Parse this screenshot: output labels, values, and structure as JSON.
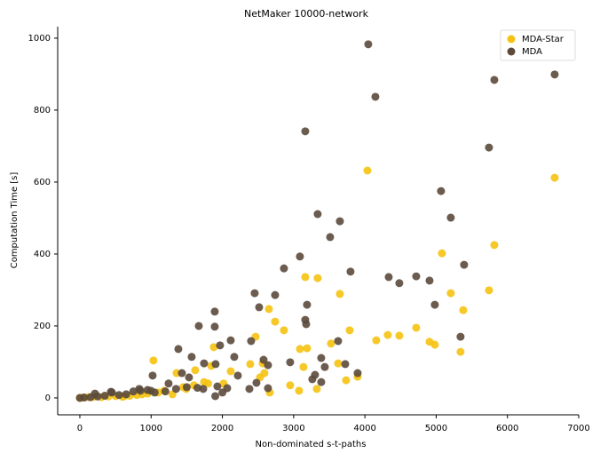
{
  "chart_data": {
    "type": "scatter",
    "title": "NetMaker 10000-network",
    "x_label": "Non-dominated s-t-paths",
    "y_label": "Computation Time [s]",
    "xlim": [
      -311,
      7000
    ],
    "ylim": [
      -47,
      1032
    ],
    "xticks": [
      0,
      1000,
      2000,
      3000,
      4000,
      5000,
      6000,
      7000
    ],
    "yticks": [
      0,
      200,
      400,
      600,
      800,
      1000
    ],
    "legend": "upper right",
    "series": [
      {
        "name": "MDA-Star",
        "color": "#f5c211",
        "x": [
          6663,
          4035,
          5816,
          5081,
          5741,
          5205,
          3649,
          5380,
          3163,
          3337,
          2653,
          2864,
          2740,
          3786,
          4720,
          4321,
          4483,
          4159,
          3524,
          4907,
          4981,
          5342,
          3188,
          3088,
          2466,
          1880,
          1033,
          2391,
          2117,
          1843,
          2565,
          3624,
          3898,
          3736,
          3138,
          2590,
          1619,
          1357,
          2951,
          3076,
          2665,
          3325,
          2528,
          2017,
          1743,
          1494,
          1183,
          872,
          623,
          0,
          50,
          120,
          200,
          300,
          400,
          500,
          600,
          700,
          800,
          950,
          1100,
          1300,
          1450,
          1600,
          1800
        ],
        "values": [
          612,
          632,
          425,
          402,
          299,
          291,
          289,
          244,
          336,
          333,
          247,
          188,
          212,
          188,
          195,
          175,
          173,
          160,
          151,
          156,
          148,
          128,
          138,
          136,
          170,
          141,
          104,
          94,
          74,
          89,
          96,
          96,
          59,
          49,
          86,
          69,
          77,
          69,
          35,
          20,
          15,
          25,
          57,
          40,
          44,
          25,
          20,
          10,
          5,
          0,
          1,
          2,
          3,
          2,
          4,
          5,
          3,
          6,
          8,
          12,
          15,
          10,
          30,
          35,
          40
        ]
      },
      {
        "name": "MDA",
        "color": "#5b4a3c",
        "x": [
          4047,
          4147,
          5816,
          6663,
          3163,
          5741,
          5068,
          5205,
          3337,
          3649,
          3512,
          3088,
          2864,
          3798,
          5392,
          4720,
          4334,
          4483,
          4907,
          2453,
          2740,
          3188,
          2516,
          4981,
          1893,
          1669,
          1893,
          3163,
          3176,
          2403,
          2117,
          1967,
          3624,
          1382,
          5342,
          3387,
          2951,
          2578,
          2167,
          1569,
          1743,
          2640,
          1905,
          3724,
          3437,
          3898,
          3300,
          2217,
          2478,
          2640,
          3262,
          3387,
          1930,
          2067,
          2379,
          1731,
          1021,
          1432,
          1532,
          1245,
          996,
          834,
          436,
          212,
          0,
          60,
          150,
          250,
          350,
          450,
          550,
          650,
          750,
          850,
          950,
          1050,
          1200,
          1350,
          1500,
          1650,
          1900,
          2000
        ],
        "values": [
          983,
          837,
          884,
          899,
          741,
          696,
          575,
          501,
          511,
          491,
          447,
          393,
          360,
          351,
          370,
          338,
          336,
          319,
          326,
          291,
          286,
          259,
          252,
          259,
          240,
          200,
          198,
          217,
          205,
          158,
          160,
          146,
          158,
          136,
          170,
          111,
          99,
          106,
          114,
          114,
          96,
          91,
          94,
          94,
          86,
          69,
          64,
          62,
          42,
          27,
          52,
          44,
          32,
          27,
          25,
          25,
          62,
          69,
          57,
          40,
          20,
          25,
          17,
          12,
          0,
          1,
          2,
          4,
          6,
          15,
          8,
          10,
          18,
          20,
          22,
          15,
          18,
          25,
          30,
          28,
          5,
          15
        ]
      }
    ]
  }
}
